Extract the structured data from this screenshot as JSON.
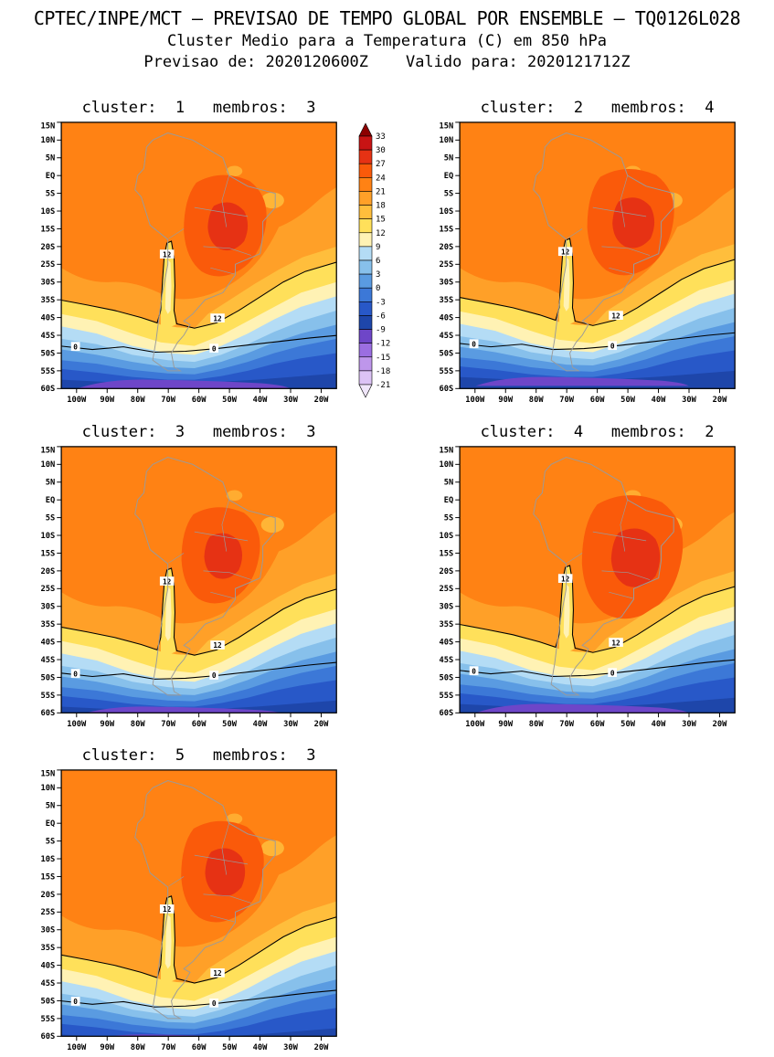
{
  "header": {
    "line1": "CPTEC/INPE/MCT — PREVISAO DE TEMPO GLOBAL POR ENSEMBLE — TQ0126L028",
    "line2": "Cluster Medio para a Temperatura (C) em 850 hPa",
    "line3": "Previsao de: 2020120600Z    Valido para: 2020121712Z"
  },
  "panels": [
    {
      "label": "cluster:  1   membros:  3",
      "cluster": 1,
      "membros": 3
    },
    {
      "label": "cluster:  2   membros:  4",
      "cluster": 2,
      "membros": 4
    },
    {
      "label": "cluster:  3   membros:  3",
      "cluster": 3,
      "membros": 3
    },
    {
      "label": "cluster:  4   membros:  2",
      "cluster": 4,
      "membros": 2
    },
    {
      "label": "cluster:  5   membros:  3",
      "cluster": 5,
      "membros": 3
    }
  ],
  "legend": {
    "tick_labels": [
      "33",
      "30",
      "27",
      "24",
      "21",
      "18",
      "15",
      "12",
      "9",
      "6",
      "3",
      "0",
      "-3",
      "-6",
      "-9",
      "-12",
      "-15",
      "-18",
      "-21"
    ],
    "colors": [
      "#8c0000",
      "#c81414",
      "#e63214",
      "#fa5a0a",
      "#ff8214",
      "#ffa028",
      "#ffbe3c",
      "#ffe05a",
      "#fff2b4",
      "#b4dcf5",
      "#87c0eb",
      "#5a9be1",
      "#3c78d7",
      "#2858c8",
      "#1e46aa",
      "#6e46c8",
      "#9b6ee1",
      "#be96eb",
      "#dcc3f5",
      "#f0e6fa"
    ]
  },
  "axes": {
    "lat_labels": [
      "15N",
      "10N",
      "5N",
      "EQ",
      "5S",
      "10S",
      "15S",
      "20S",
      "25S",
      "30S",
      "35S",
      "40S",
      "45S",
      "50S",
      "55S",
      "60S"
    ],
    "lon_labels": [
      "100W",
      "90W",
      "80W",
      "70W",
      "60W",
      "50W",
      "40W",
      "30W",
      "20W"
    ]
  },
  "contour_labels": [
    "12",
    "0"
  ],
  "chart_data": {
    "type": "heatmap",
    "subtype": "filled contour maps (ensemble cluster means), 5 panels",
    "title": "Cluster Medio para a Temperatura (C) em 850 hPa",
    "source_line": "CPTEC/INPE/MCT - PREVISAO DE TEMPO GLOBAL POR ENSEMBLE - TQ0126L028",
    "forecast_init": "2020120600Z",
    "forecast_valid": "2020121712Z",
    "units": "C",
    "level_hPa": 850,
    "contour_levels": [
      33,
      30,
      27,
      24,
      21,
      18,
      15,
      12,
      9,
      6,
      3,
      0,
      -3,
      -6,
      -9,
      -12,
      -15,
      -18,
      -21
    ],
    "labeled_contours": [
      12,
      0
    ],
    "lat_ticks": [
      "15N",
      "10N",
      "5N",
      "EQ",
      "5S",
      "10S",
      "15S",
      "20S",
      "25S",
      "30S",
      "35S",
      "40S",
      "45S",
      "50S",
      "55S",
      "60S"
    ],
    "lon_ticks": [
      "100W",
      "90W",
      "80W",
      "70W",
      "60W",
      "50W",
      "40W",
      "30W",
      "20W"
    ],
    "panels": [
      {
        "cluster": 1,
        "membros": 3
      },
      {
        "cluster": 2,
        "membros": 4
      },
      {
        "cluster": 3,
        "membros": 3
      },
      {
        "cluster": 4,
        "membros": 2
      },
      {
        "cluster": 5,
        "membros": 3
      }
    ],
    "pattern_summary": "Warm air (18-30C, orange/red shading) covers tropical South America with a 24-30C maximum over central Brazil/Bolivia and a cool tongue along the Andes; the labeled 12C contour runs SW-NE near 30-35S, the labeled 0C contour near 45S, and temperatures fall below -9C toward 60S (blue/purple shading)."
  }
}
